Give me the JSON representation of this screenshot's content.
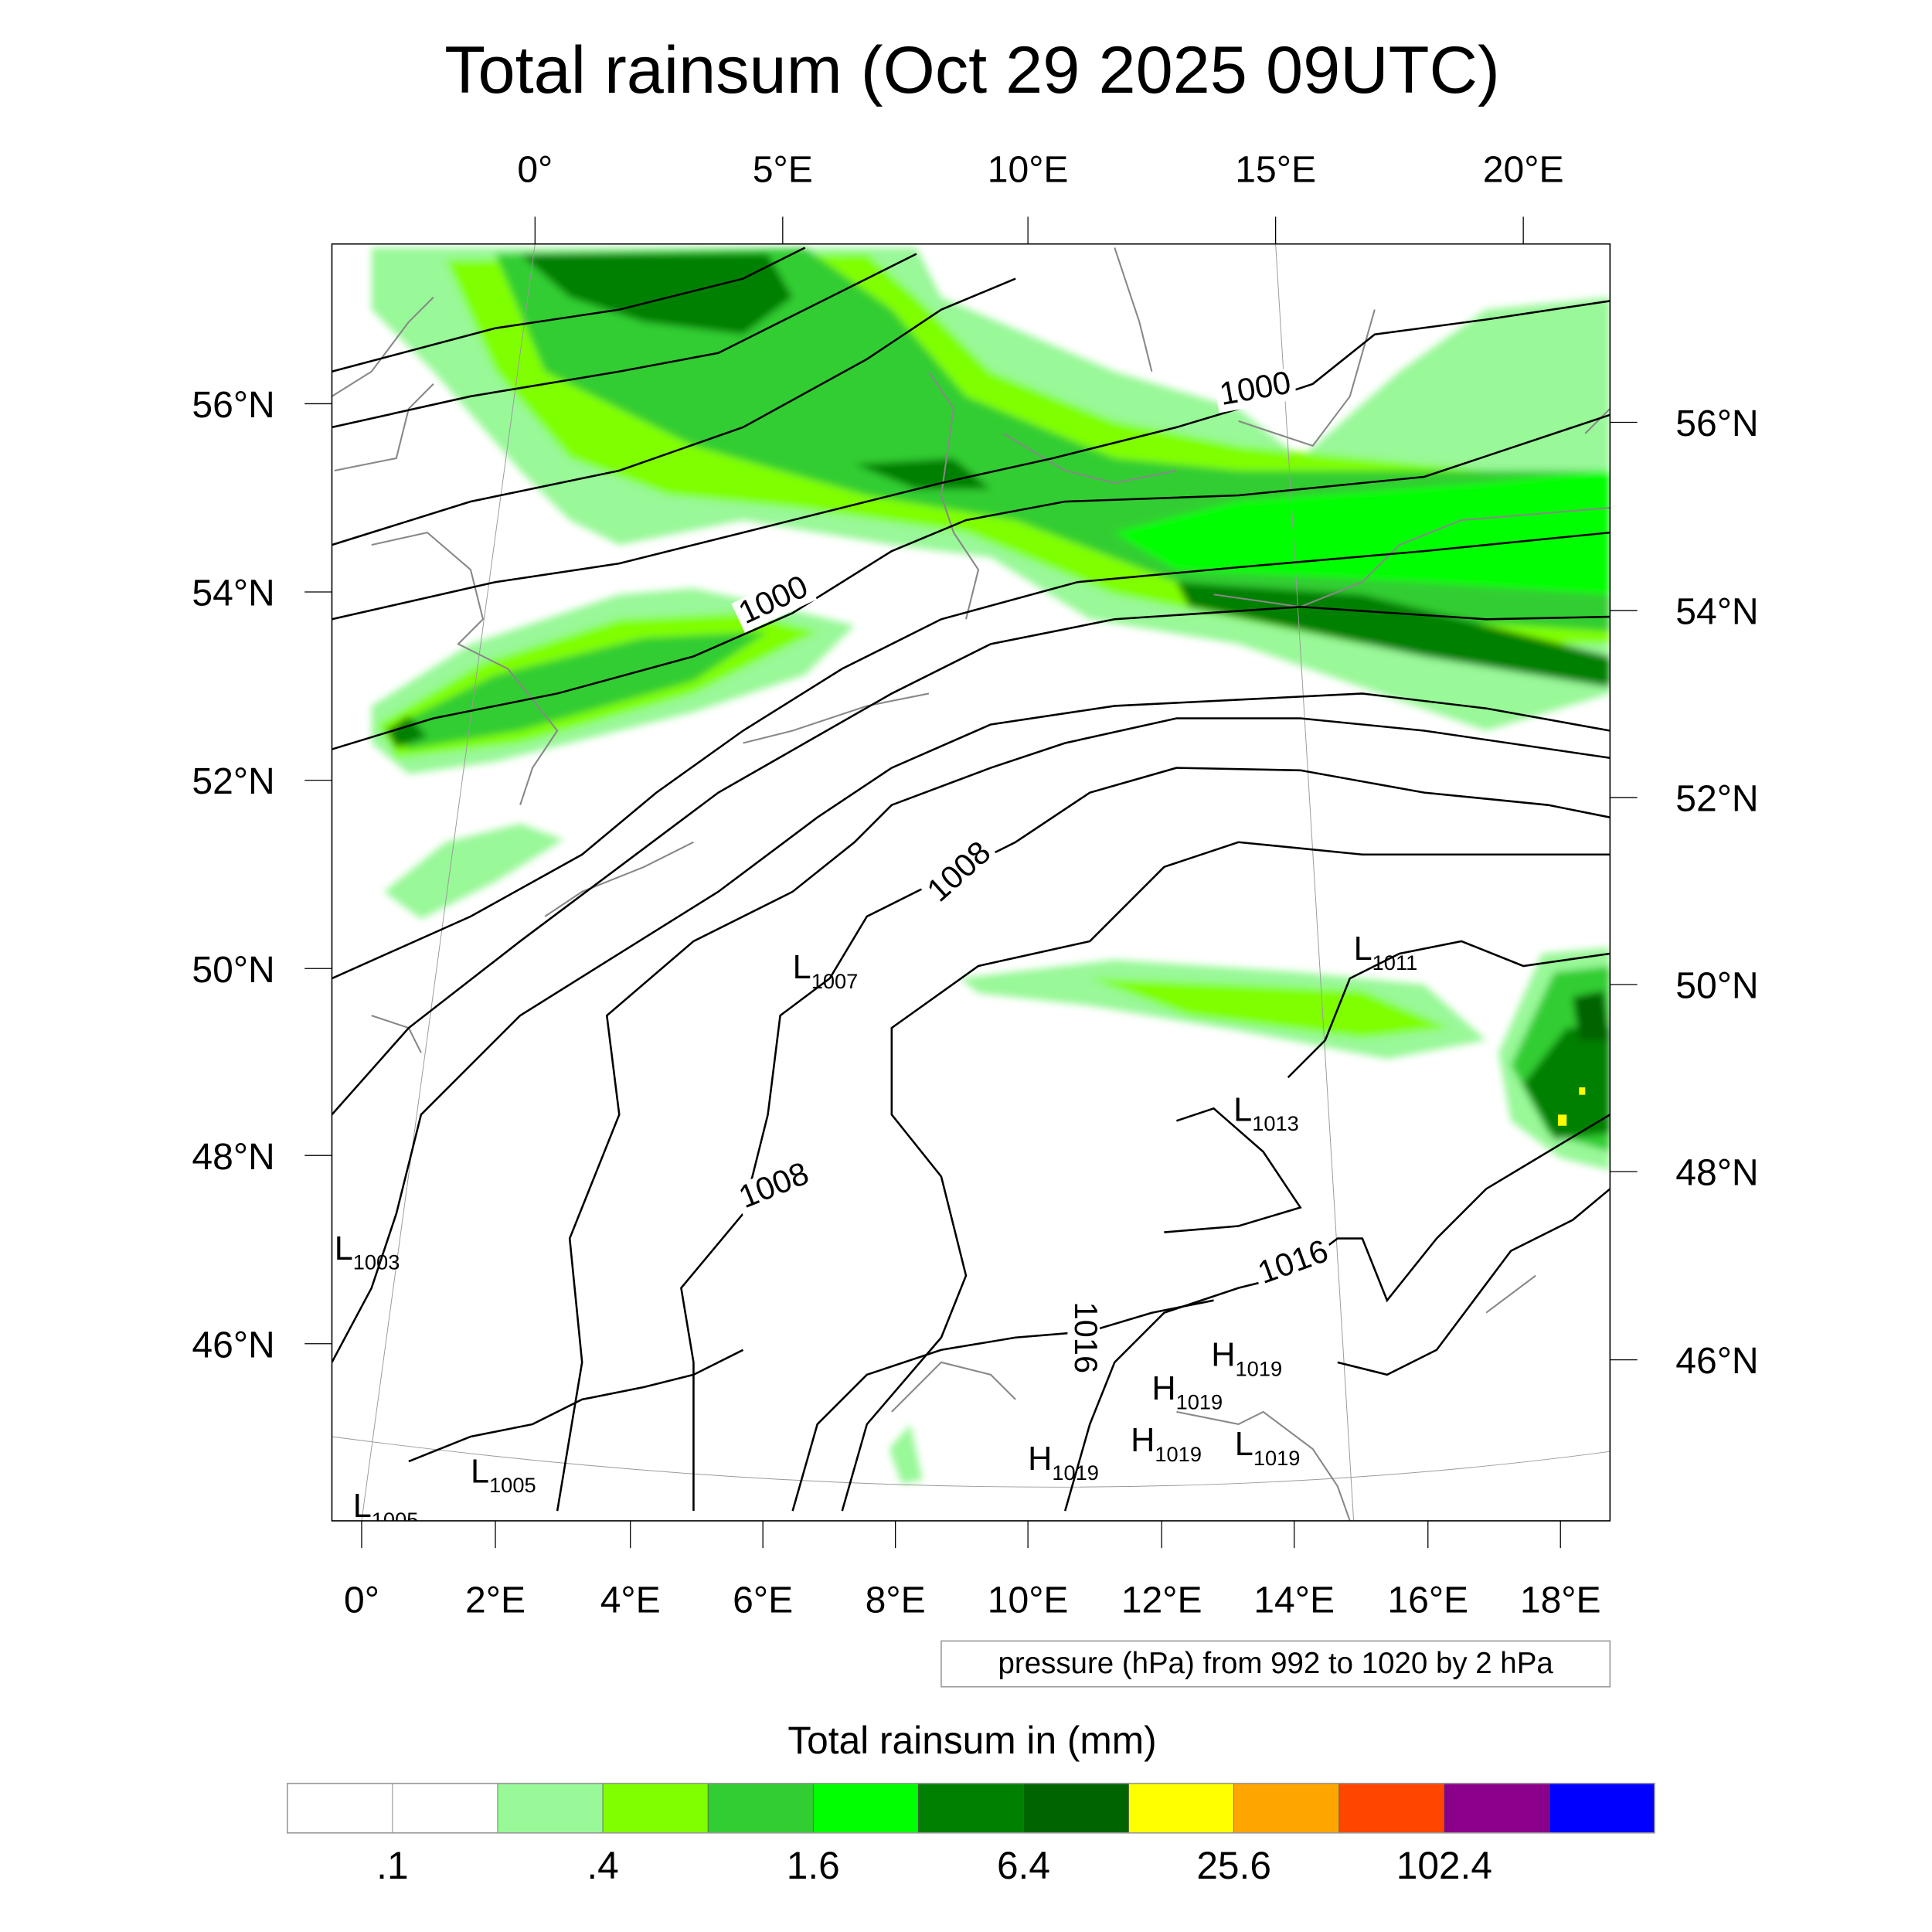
{
  "title": "Total rainsum (Oct 29 2025 09UTC)",
  "top_lon_labels": [
    "0°",
    "5°E",
    "10°E",
    "15°E",
    "20°E"
  ],
  "bottom_lon_labels": [
    "0°",
    "2°E",
    "4°E",
    "6°E",
    "8°E",
    "10°E",
    "12°E",
    "14°E",
    "16°E",
    "18°E"
  ],
  "left_lat_labels": [
    "56°N",
    "54°N",
    "52°N",
    "50°N",
    "48°N",
    "46°N"
  ],
  "right_lat_labels": [
    "56°N",
    "54°N",
    "52°N",
    "50°N",
    "48°N",
    "46°N"
  ],
  "contour_info": "pressure (hPa) from 992 to 1020 by 2 hPa",
  "contour_labels": [
    "1000",
    "1000",
    "1008",
    "1008",
    "1016",
    "1016"
  ],
  "pressure_centers": [
    {
      "type": "L",
      "value": "1007"
    },
    {
      "type": "L",
      "value": "1011"
    },
    {
      "type": "L",
      "value": "1013"
    },
    {
      "type": "L",
      "value": "1003"
    },
    {
      "type": "L",
      "value": "1005"
    },
    {
      "type": "L",
      "value": "1005"
    },
    {
      "type": "H",
      "value": "1019"
    },
    {
      "type": "H",
      "value": "1019"
    },
    {
      "type": "H",
      "value": "1019"
    },
    {
      "type": "H",
      "value": "1019"
    },
    {
      "type": "L",
      "value": "1019"
    }
  ],
  "colorbar": {
    "title": "Total rainsum in (mm)",
    "colors": [
      "#ffffff",
      "#ffffff",
      "#99f898",
      "#80ff00",
      "#32cd32",
      "#00ff00",
      "#008000",
      "#006400",
      "#ffff00",
      "#ffa500",
      "#ff4500",
      "#8b008b",
      "#0000ff"
    ],
    "levels": [
      0.1,
      0.2,
      0.4,
      0.8,
      1.6,
      3.2,
      6.4,
      12.8,
      25.6,
      51.2,
      102.4,
      204.8
    ],
    "tick_labels": [
      ".1",
      ".4",
      "1.6",
      "6.4",
      "25.6",
      "102.4"
    ]
  },
  "chart_data": {
    "type": "heatmap",
    "title": "Total rainsum (Oct 29 2025 09UTC)",
    "variable": "Total rainsum in (mm)",
    "overlay": "pressure (hPa) from 992 to 1020 by 2 hPa",
    "lon_range": [
      0,
      20
    ],
    "lat_range": [
      45,
      57
    ],
    "legend_placement": "bottom"
  }
}
